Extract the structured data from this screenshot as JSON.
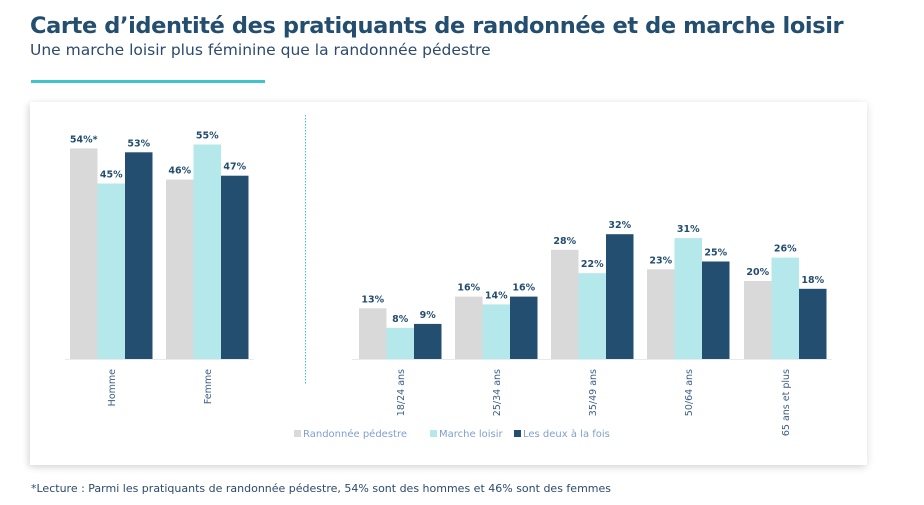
{
  "header": {
    "title": "Carte d’identité des pratiquants de randonnée et de marche loisir",
    "subtitle": "Une marche loisir plus féminine que la randonnée pédestre"
  },
  "footnote": "*Lecture : Parmi les pratiquants de randonnée pédestre, 54% sont des hommes et 46% sont des femmes",
  "colors": {
    "randonnee": "#d9d9d9",
    "marche": "#b5e8ea",
    "deux": "#234e70",
    "accent": "#3fc3cc",
    "title": "#234e70"
  },
  "chart_data": {
    "type": "bar",
    "title": "Carte d’identité des pratiquants de randonnée et de marche loisir",
    "subtitle": "Une marche loisir plus féminine que la randonnée pédestre",
    "xlabel": "",
    "ylabel": "",
    "ylim": [
      0,
      60
    ],
    "grid": false,
    "legend_position": "bottom",
    "categories": [
      "Homme",
      "Femme",
      "18/24 ans",
      "25/34 ans",
      "35/49 ans",
      "50/64 ans",
      "65 ans et plus"
    ],
    "groups": [
      {
        "name": "sexe",
        "categories": [
          "Homme",
          "Femme"
        ]
      },
      {
        "name": "age",
        "categories": [
          "18/24 ans",
          "25/34 ans",
          "35/49 ans",
          "50/64 ans",
          "65 ans et plus"
        ]
      }
    ],
    "series": [
      {
        "name": "Randonnée pédestre",
        "color": "#d9d9d9",
        "values": [
          54,
          46,
          13,
          16,
          28,
          23,
          20
        ],
        "labels": [
          "54%*",
          "46%",
          "13%",
          "16%",
          "28%",
          "23%",
          "20%"
        ]
      },
      {
        "name": "Marche loisir",
        "color": "#b5e8ea",
        "values": [
          45,
          55,
          8,
          14,
          22,
          31,
          26
        ],
        "labels": [
          "45%",
          "55%",
          "8%",
          "14%",
          "22%",
          "31%",
          "26%"
        ]
      },
      {
        "name": "Les deux à la fois",
        "color": "#234e70",
        "values": [
          53,
          47,
          9,
          16,
          32,
          25,
          18
        ],
        "labels": [
          "53%",
          "47%",
          "9%",
          "16%",
          "32%",
          "25%",
          "18%"
        ]
      }
    ],
    "separator": "dotted line between sex and age groups"
  }
}
